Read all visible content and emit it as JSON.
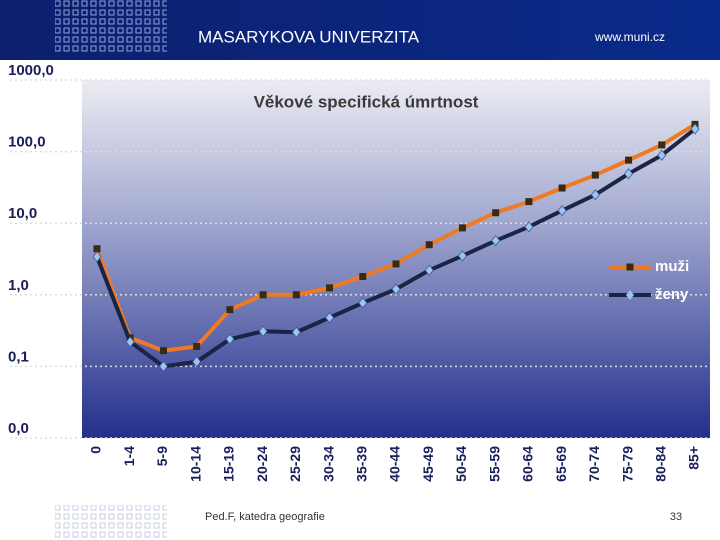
{
  "header": {
    "university": "MASARYKOVA UNIVERZITA",
    "url": "www.muni.cz"
  },
  "footer": {
    "department": "Ped.F, katedra geografie",
    "page": "33"
  },
  "chart_data": {
    "type": "line",
    "title": "Věkové specifická úmrtnost",
    "categories": [
      "0",
      "1-4",
      "5-9",
      "10-14",
      "15-19",
      "20-24",
      "25-29",
      "30-34",
      "35-39",
      "40-44",
      "45-49",
      "50-54",
      "55-59",
      "60-64",
      "65-69",
      "70-74",
      "75-79",
      "80-84",
      "85+"
    ],
    "series": [
      {
        "name": "muži",
        "color": "#f07a20",
        "marker_color": "#3a2a10",
        "values": [
          4.4,
          0.25,
          0.166,
          0.19,
          0.62,
          1.0,
          1.0,
          1.25,
          1.8,
          2.7,
          5.0,
          8.6,
          14,
          20,
          31,
          47,
          76,
          124,
          240
        ]
      },
      {
        "name": "ženy",
        "color": "#1a2444",
        "marker_color": "#9ec4f0",
        "values": [
          3.4,
          0.22,
          0.1,
          0.116,
          0.24,
          0.31,
          0.3,
          0.48,
          0.77,
          1.2,
          2.2,
          3.5,
          5.7,
          8.9,
          15,
          25,
          49,
          89,
          207
        ]
      }
    ],
    "log_y": true,
    "ylim": [
      0.01,
      1000
    ],
    "yticks": [
      {
        "value": 0.01,
        "label": "0,0"
      },
      {
        "value": 0.1,
        "label": "0,1"
      },
      {
        "value": 1,
        "label": "1,0"
      },
      {
        "value": 10,
        "label": "10,0"
      },
      {
        "value": 100,
        "label": "100,0"
      },
      {
        "value": 1000,
        "label": "1000,0"
      }
    ],
    "grid": true,
    "legend": "right"
  }
}
